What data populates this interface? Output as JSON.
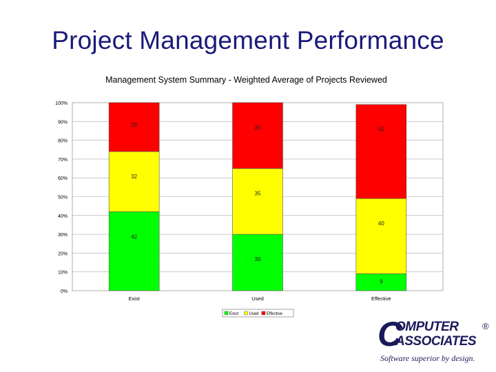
{
  "slide": {
    "title": "Project Management Performance"
  },
  "chart_data": {
    "type": "bar",
    "stacked": true,
    "title": "Management System Summary - Weighted Average of Projects Reviewed",
    "categories": [
      "Exist",
      "Used",
      "Effective"
    ],
    "series": [
      {
        "name": "Exist",
        "values": [
          42,
          30,
          9
        ],
        "color": "#00ff00"
      },
      {
        "name": "Used",
        "values": [
          32,
          35,
          40
        ],
        "color": "#ffff00"
      },
      {
        "name": "Effective",
        "values": [
          26,
          35,
          50
        ],
        "color": "#ff0000"
      }
    ],
    "data_labels": [
      [
        "42",
        "32",
        "26"
      ],
      [
        "30",
        "35",
        "35"
      ],
      [
        "9",
        "40",
        "50"
      ]
    ],
    "yticks": [
      "0%",
      "10%",
      "20%",
      "30%",
      "40%",
      "50%",
      "60%",
      "70%",
      "80%",
      "90%",
      "100%"
    ],
    "ylim": [
      0,
      100
    ],
    "grid": true,
    "legend": "bottom"
  },
  "logo": {
    "c": "C",
    "line1": "OMPUTER",
    "line2": "ASSOCIATES",
    "reg": "®",
    "tagline": "Software superior by design."
  }
}
